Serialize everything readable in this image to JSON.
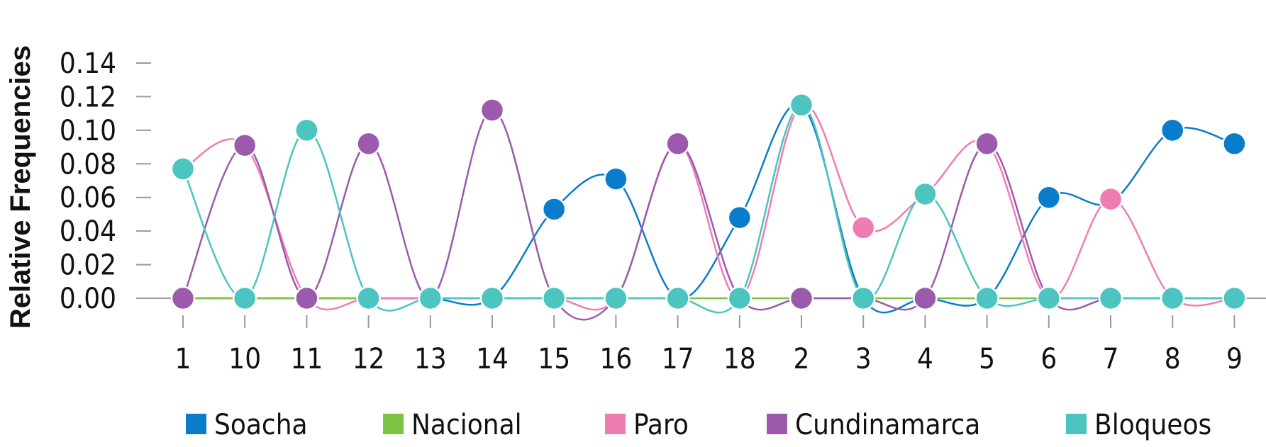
{
  "chart_data": {
    "type": "line",
    "title": "",
    "xlabel": "",
    "ylabel": "Relative Frequencies",
    "categories": [
      "1",
      "10",
      "11",
      "12",
      "13",
      "14",
      "15",
      "16",
      "17",
      "18",
      "2",
      "3",
      "4",
      "5",
      "6",
      "7",
      "8",
      "9"
    ],
    "ylim": [
      0,
      0.14
    ],
    "yticks": [
      "0.00",
      "0.02",
      "0.04",
      "0.06",
      "0.08",
      "0.10",
      "0.12",
      "0.14"
    ],
    "grid": false,
    "smooth": true,
    "legend_position": "bottom",
    "series": [
      {
        "name": "Soacha",
        "color": "#0a7ccc",
        "values": [
          0,
          0,
          0,
          0,
          0,
          0,
          0.053,
          0.071,
          0,
          0.048,
          0.115,
          0,
          0,
          0,
          0.06,
          0.057,
          0.1,
          0.092
        ],
        "markers": [
          false,
          false,
          false,
          false,
          false,
          false,
          true,
          true,
          false,
          true,
          true,
          false,
          false,
          false,
          true,
          false,
          true,
          true
        ]
      },
      {
        "name": "Nacional",
        "color": "#7cc243",
        "values": [
          0,
          0,
          0,
          0,
          0,
          0,
          0,
          0,
          0,
          0,
          0,
          0,
          0,
          0,
          0,
          0,
          0,
          0
        ],
        "markers": [
          false,
          false,
          false,
          false,
          false,
          false,
          false,
          false,
          false,
          false,
          false,
          false,
          false,
          false,
          false,
          false,
          false,
          false
        ]
      },
      {
        "name": "Paro",
        "color": "#f07cb4",
        "values": [
          0.077,
          0.091,
          0,
          0,
          0,
          0,
          0,
          0,
          0.092,
          0,
          0.115,
          0.042,
          0.062,
          0.092,
          0,
          0.059,
          0,
          0
        ],
        "markers": [
          false,
          false,
          false,
          false,
          false,
          false,
          false,
          false,
          false,
          false,
          false,
          true,
          false,
          false,
          false,
          true,
          false,
          false
        ]
      },
      {
        "name": "Cundinamarca",
        "color": "#9b5aac",
        "values": [
          0,
          0.091,
          0,
          0.092,
          0,
          0.112,
          0,
          0,
          0.092,
          0,
          0,
          0,
          0,
          0.092,
          0,
          0,
          0,
          0
        ],
        "markers": [
          true,
          true,
          true,
          true,
          false,
          true,
          false,
          false,
          true,
          false,
          true,
          false,
          true,
          true,
          false,
          false,
          false,
          false
        ]
      },
      {
        "name": "Bloqueos",
        "color": "#4cc4c0",
        "values": [
          0.077,
          0,
          0.1,
          0,
          0,
          0,
          0,
          0,
          0,
          0,
          0.115,
          0,
          0.062,
          0,
          0,
          0,
          0,
          0
        ],
        "markers": [
          true,
          true,
          true,
          true,
          true,
          true,
          true,
          true,
          true,
          true,
          true,
          true,
          true,
          true,
          true,
          true,
          true,
          true
        ]
      }
    ]
  }
}
